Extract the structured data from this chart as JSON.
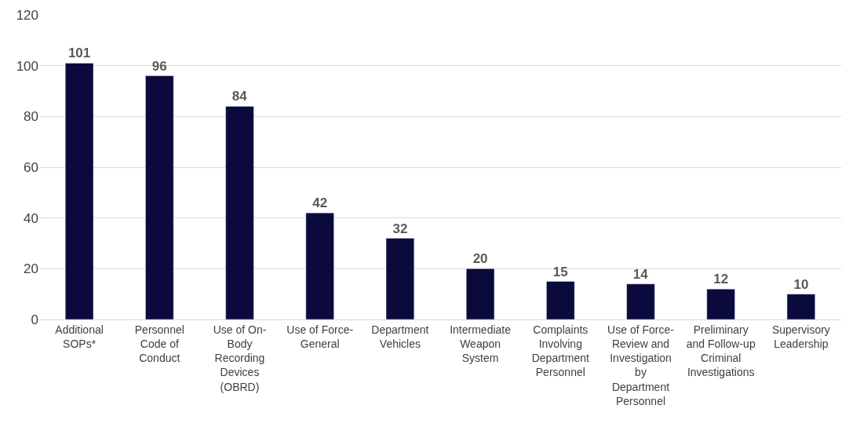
{
  "chart_data": {
    "type": "bar",
    "categories": [
      "Additional\nSOPs*",
      "Personnel\nCode of\nConduct",
      "Use of On-\nBody\nRecording\nDevices\n(OBRD)",
      "Use of Force-\nGeneral",
      "Department\nVehicles",
      "Intermediate\nWeapon\nSystem",
      "Complaints\nInvolving\nDepartment\nPersonnel",
      "Use of Force-\nReview and\nInvestigation\nby\nDepartment\nPersonnel",
      "Preliminary\nand Follow-up\nCriminal\nInvestigations",
      "Supervisory\nLeadership"
    ],
    "values": [
      101,
      96,
      84,
      42,
      32,
      20,
      15,
      14,
      12,
      10
    ],
    "color": "#0a0a3c",
    "ylim": [
      0,
      120
    ],
    "yticks": [
      0,
      20,
      40,
      60,
      80,
      100,
      120
    ],
    "grid": "y",
    "data_labels": true
  }
}
